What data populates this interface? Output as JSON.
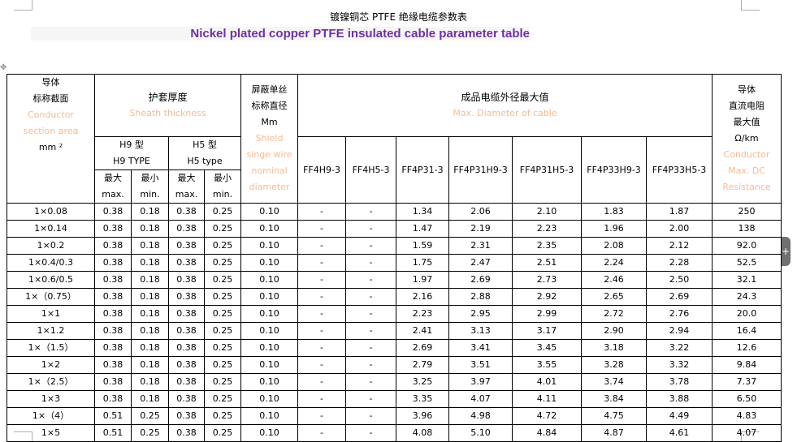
{
  "title_cn": "镀镍铜芯 PTFE 绝缘电缆参数表",
  "title_en": "Nickel plated copper PTFE insulated cable parameter table",
  "header": {
    "conductor": [
      "导体",
      "标称截面",
      "Conductor",
      "section area",
      "mm ²"
    ],
    "sheath": [
      "护套厚度",
      "Sheath thickness"
    ],
    "h9": [
      "H9 型",
      "H9 TYPE"
    ],
    "h5": [
      "H5 型",
      "H5 type"
    ],
    "max": [
      "最大",
      "max."
    ],
    "min": [
      "最小",
      "min."
    ],
    "shield": [
      "屏蔽单丝",
      "标称直径",
      "Mm",
      "Shield",
      "singe wire",
      "nominal",
      "diameter"
    ],
    "diameter": [
      "成品电缆外径最大值",
      "Max. Diameter of cable"
    ],
    "models": [
      "FF4H9-3",
      "FF4H5-3",
      "FF4P31-3",
      "FF4P31H9-3",
      "FF4P31H5-3",
      "FF4P33H9-3",
      "FF4P33H5-3"
    ],
    "resistance": [
      "导体",
      "直流电阻",
      "最大值",
      "Ω/km",
      "Conductor",
      "Max. DC",
      "Resistance"
    ]
  },
  "rows": [
    [
      "1×0.08",
      "0.38",
      "0.18",
      "0.38",
      "0.25",
      "0.10",
      "-",
      "-",
      "1.34",
      "2.06",
      "2.10",
      "1.83",
      "1.87",
      "250"
    ],
    [
      "1×0.14",
      "0.38",
      "0.18",
      "0.38",
      "0.25",
      "0.10",
      "-",
      "-",
      "1.47",
      "2.19",
      "2.23",
      "1.96",
      "2.00",
      "138"
    ],
    [
      "1×0.2",
      "0.38",
      "0.18",
      "0.38",
      "0.25",
      "0.10",
      "-",
      "-",
      "1.59",
      "2.31",
      "2.35",
      "2.08",
      "2.12",
      "92.0"
    ],
    [
      "1×0.4/0.3",
      "0.38",
      "0.18",
      "0.38",
      "0.25",
      "0.10",
      "-",
      "-",
      "1.75",
      "2.47",
      "2.51",
      "2.24",
      "2.28",
      "52.5"
    ],
    [
      "1×0.6/0.5",
      "0.38",
      "0.18",
      "0.38",
      "0.25",
      "0.10",
      "-",
      "-",
      "1.97",
      "2.69",
      "2.73",
      "2.46",
      "2.50",
      "32.1"
    ],
    [
      "1×（0.75）",
      "0.38",
      "0.18",
      "0.38",
      "0.25",
      "0.10",
      "-",
      "-",
      "2.16",
      "2.88",
      "2.92",
      "2.65",
      "2.69",
      "24.3"
    ],
    [
      "1×1",
      "0.38",
      "0.18",
      "0.38",
      "0.25",
      "0.10",
      "-",
      "-",
      "2.23",
      "2.95",
      "2.99",
      "2.72",
      "2.76",
      "20.0"
    ],
    [
      "1×1.2",
      "0.38",
      "0.18",
      "0.38",
      "0.25",
      "0.10",
      "-",
      "-",
      "2.41",
      "3.13",
      "3.17",
      "2.90",
      "2.94",
      "16.4"
    ],
    [
      "1×（1.5）",
      "0.38",
      "0.18",
      "0.38",
      "0.25",
      "0.10",
      "-",
      "-",
      "2.69",
      "3.41",
      "3.45",
      "3.18",
      "3.22",
      "12.6"
    ],
    [
      "1×2",
      "0.38",
      "0.18",
      "0.38",
      "0.25",
      "0.10",
      "-",
      "-",
      "2.79",
      "3.51",
      "3.55",
      "3.28",
      "3.32",
      "9.84"
    ],
    [
      "1×（2.5）",
      "0.38",
      "0.18",
      "0.38",
      "0.25",
      "0.10",
      "-",
      "-",
      "3.25",
      "3.97",
      "4.01",
      "3.74",
      "3.78",
      "7.37"
    ],
    [
      "1×3",
      "0.38",
      "0.18",
      "0.38",
      "0.25",
      "0.10",
      "-",
      "-",
      "3.35",
      "4.07",
      "4.11",
      "3.84",
      "3.88",
      "6.50"
    ],
    [
      "1×（4）",
      "0.51",
      "0.25",
      "0.38",
      "0.25",
      "0.10",
      "-",
      "-",
      "3.96",
      "4.98",
      "4.72",
      "4.75",
      "4.49",
      "4.83"
    ],
    [
      "1×5",
      "0.51",
      "0.25",
      "0.38",
      "0.25",
      "0.10",
      "-",
      "-",
      "4.08",
      "5.10",
      "4.84",
      "4.87",
      "4.61",
      "4.07"
    ]
  ],
  "colors": {
    "title_en": "#7030a0",
    "english_label": "#f8b995"
  },
  "icons": {
    "table_handle": "move-icon",
    "add": "plus-icon"
  }
}
